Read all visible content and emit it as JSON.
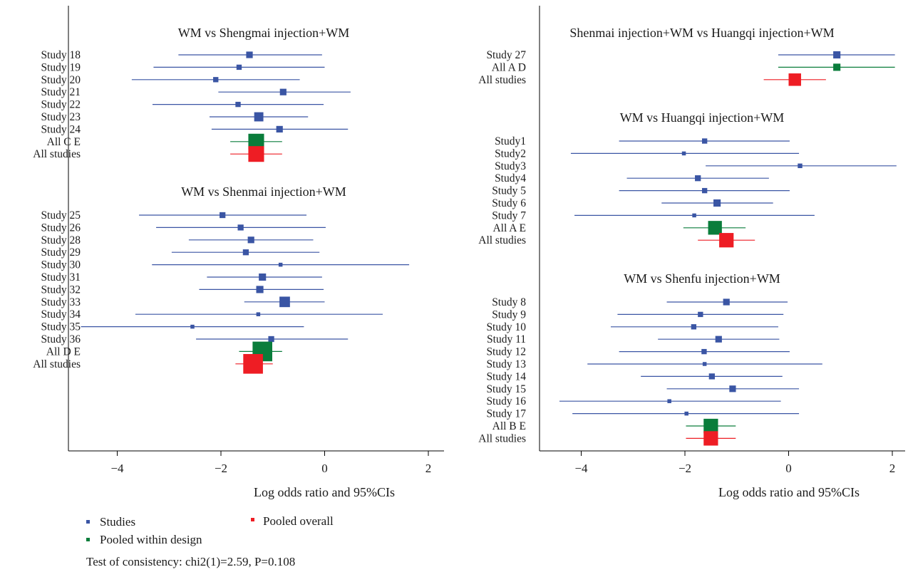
{
  "colors": {
    "study": "#3a55a4",
    "pooled_within": "#0a7d3b",
    "pooled_overall": "#ee1d24"
  },
  "chart_data": [
    {
      "type": "forest",
      "xlabel": "Log odds ratio and 95%CIs",
      "xlim": [
        -4.9,
        2.3
      ],
      "xticks": [
        -4,
        -2,
        0,
        2
      ],
      "xtick_labels": [
        "−4",
        "−2",
        "0",
        "2"
      ],
      "panels": [
        {
          "title": "WM vs Shengmai injection+WM",
          "rows": [
            {
              "label": "Study 18",
              "kind": "study",
              "est": -1.45,
              "lo": -2.82,
              "hi": -0.05,
              "w": 1.0
            },
            {
              "label": "Study 19",
              "kind": "study",
              "est": -1.65,
              "lo": -3.3,
              "hi": 0.0,
              "w": 0.8
            },
            {
              "label": "Study 20",
              "kind": "study",
              "est": -2.1,
              "lo": -3.72,
              "hi": -0.48,
              "w": 0.8
            },
            {
              "label": "Study 21",
              "kind": "study",
              "est": -0.8,
              "lo": -2.05,
              "hi": 0.5,
              "w": 1.0
            },
            {
              "label": "Study 22",
              "kind": "study",
              "est": -1.67,
              "lo": -3.32,
              "hi": -0.02,
              "w": 0.8
            },
            {
              "label": "Study 23",
              "kind": "study",
              "est": -1.27,
              "lo": -2.22,
              "hi": -0.32,
              "w": 1.4
            },
            {
              "label": "Study 24",
              "kind": "study",
              "est": -0.87,
              "lo": -2.18,
              "hi": 0.45,
              "w": 1.0
            },
            {
              "label": "All C E",
              "kind": "within",
              "est": -1.32,
              "lo": -1.82,
              "hi": -0.82,
              "w": 2.4
            },
            {
              "label": "All studies",
              "kind": "overall",
              "est": -1.32,
              "lo": -1.82,
              "hi": -0.82,
              "w": 2.4
            }
          ]
        },
        {
          "title": "WM vs Shenmai injection+WM",
          "rows": [
            {
              "label": "Study 25",
              "kind": "study",
              "est": -1.97,
              "lo": -3.58,
              "hi": -0.35,
              "w": 0.9
            },
            {
              "label": "Study 26",
              "kind": "study",
              "est": -1.62,
              "lo": -3.25,
              "hi": 0.02,
              "w": 0.9
            },
            {
              "label": "Study 28",
              "kind": "study",
              "est": -1.42,
              "lo": -2.62,
              "hi": -0.22,
              "w": 1.0
            },
            {
              "label": "Study 29",
              "kind": "study",
              "est": -1.52,
              "lo": -2.95,
              "hi": -0.1,
              "w": 0.9
            },
            {
              "label": "Study 30",
              "kind": "study",
              "est": -0.85,
              "lo": -3.33,
              "hi": 1.63,
              "w": 0.6
            },
            {
              "label": "Study 31",
              "kind": "study",
              "est": -1.2,
              "lo": -2.27,
              "hi": -0.05,
              "w": 1.1
            },
            {
              "label": "Study 32",
              "kind": "study",
              "est": -1.25,
              "lo": -2.42,
              "hi": -0.02,
              "w": 1.1
            },
            {
              "label": "Study 33",
              "kind": "study",
              "est": -0.77,
              "lo": -1.55,
              "hi": 0.0,
              "w": 1.6
            },
            {
              "label": "Study 34",
              "kind": "study",
              "est": -1.28,
              "lo": -3.65,
              "hi": 1.12,
              "w": 0.6
            },
            {
              "label": "Study 35",
              "kind": "study",
              "est": -2.55,
              "lo": -4.7,
              "hi": -0.4,
              "w": 0.6
            },
            {
              "label": "Study 36",
              "kind": "study",
              "est": -1.03,
              "lo": -2.48,
              "hi": 0.45,
              "w": 0.9
            },
            {
              "label": "All D E",
              "kind": "within",
              "est": -1.2,
              "lo": -1.65,
              "hi": -0.82,
              "w": 3.0
            },
            {
              "label": "All studies",
              "kind": "overall",
              "est": -1.38,
              "lo": -1.72,
              "hi": -1.0,
              "w": 3.0
            }
          ]
        }
      ]
    },
    {
      "type": "forest",
      "xlabel": "Log odds ratio and 95%CIs",
      "xlim": [
        -4.9,
        2.3
      ],
      "xticks": [
        -4,
        -2,
        0,
        2
      ],
      "xtick_labels": [
        "−4",
        "−2",
        "0",
        "2"
      ],
      "panels": [
        {
          "title": "Shenmai injection+WM vs Huangqi injection+WM",
          "rows": [
            {
              "label": "Study 27",
              "kind": "study",
              "est": 0.93,
              "lo": -0.2,
              "hi": 2.05,
              "w": 1.1
            },
            {
              "label": "All A D",
              "kind": "within",
              "est": 0.93,
              "lo": -0.2,
              "hi": 2.05,
              "w": 1.1
            },
            {
              "label": "All studies",
              "kind": "overall",
              "est": 0.12,
              "lo": -0.48,
              "hi": 0.72,
              "w": 1.9
            }
          ]
        },
        {
          "title": "WM vs Huangqi injection+WM",
          "rows": [
            {
              "label": "Study1",
              "kind": "study",
              "est": -1.62,
              "lo": -3.27,
              "hi": 0.02,
              "w": 0.8
            },
            {
              "label": "Study2",
              "kind": "study",
              "est": -2.02,
              "lo": -4.2,
              "hi": 0.2,
              "w": 0.6
            },
            {
              "label": "Study3",
              "kind": "study",
              "est": 0.22,
              "lo": -1.6,
              "hi": 2.08,
              "w": 0.7
            },
            {
              "label": "Study4",
              "kind": "study",
              "est": -1.75,
              "lo": -3.12,
              "hi": -0.38,
              "w": 0.9
            },
            {
              "label": "Study 5",
              "kind": "study",
              "est": -1.62,
              "lo": -3.27,
              "hi": 0.02,
              "w": 0.8
            },
            {
              "label": "Study 6",
              "kind": "study",
              "est": -1.38,
              "lo": -2.45,
              "hi": -0.3,
              "w": 1.1
            },
            {
              "label": "Study 7",
              "kind": "study",
              "est": -1.82,
              "lo": -4.13,
              "hi": 0.5,
              "w": 0.6
            },
            {
              "label": "All A E",
              "kind": "within",
              "est": -1.42,
              "lo": -2.03,
              "hi": -0.83,
              "w": 2.1
            },
            {
              "label": "All studies",
              "kind": "overall",
              "est": -1.2,
              "lo": -1.75,
              "hi": -0.65,
              "w": 2.2
            }
          ]
        },
        {
          "title": "WM vs Shenfu injection+WM",
          "rows": [
            {
              "label": "Study 8",
              "kind": "study",
              "est": -1.2,
              "lo": -2.35,
              "hi": -0.02,
              "w": 1.0
            },
            {
              "label": "Study 9",
              "kind": "study",
              "est": -1.7,
              "lo": -3.3,
              "hi": -0.1,
              "w": 0.8
            },
            {
              "label": "Study 10",
              "kind": "study",
              "est": -1.83,
              "lo": -3.43,
              "hi": -0.2,
              "w": 0.8
            },
            {
              "label": "Study 11",
              "kind": "study",
              "est": -1.35,
              "lo": -2.52,
              "hi": -0.18,
              "w": 1.0
            },
            {
              "label": "Study 12",
              "kind": "study",
              "est": -1.63,
              "lo": -3.27,
              "hi": 0.02,
              "w": 0.8
            },
            {
              "label": "Study 13",
              "kind": "study",
              "est": -1.62,
              "lo": -3.88,
              "hi": 0.65,
              "w": 0.6
            },
            {
              "label": "Study 14",
              "kind": "study",
              "est": -1.48,
              "lo": -2.85,
              "hi": -0.12,
              "w": 0.9
            },
            {
              "label": "Study 15",
              "kind": "study",
              "est": -1.08,
              "lo": -2.35,
              "hi": 0.2,
              "w": 1.0
            },
            {
              "label": "Study 16",
              "kind": "study",
              "est": -2.3,
              "lo": -4.42,
              "hi": -0.15,
              "w": 0.6
            },
            {
              "label": "Study 17",
              "kind": "study",
              "est": -1.97,
              "lo": -4.17,
              "hi": 0.2,
              "w": 0.6
            },
            {
              "label": "All B E",
              "kind": "within",
              "est": -1.5,
              "lo": -1.98,
              "hi": -1.02,
              "w": 2.2
            },
            {
              "label": "All studies",
              "kind": "overall",
              "est": -1.5,
              "lo": -1.98,
              "hi": -1.02,
              "w": 2.2
            }
          ]
        }
      ]
    }
  ],
  "legend": {
    "studies": "Studies",
    "pooled_overall": "Pooled overall",
    "pooled_within": "Pooled within design"
  },
  "footer": "Test of consistency: chi2(1)=2.59, P=0.108"
}
